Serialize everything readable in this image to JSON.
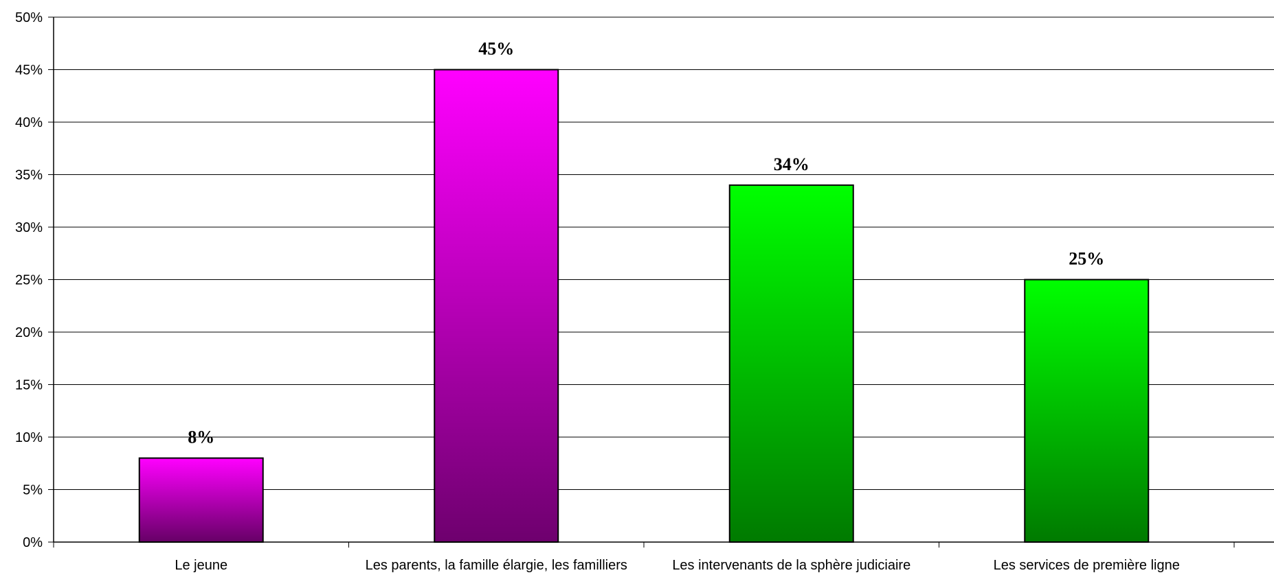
{
  "chart_data": {
    "type": "bar",
    "categories": [
      "Le jeune",
      "Les parents, la famille élargie, les familliers",
      "Les intervenants de la sphère judiciaire",
      "Les services de première ligne"
    ],
    "values": [
      8,
      45,
      34,
      25
    ],
    "data_labels": [
      "8%",
      "45%",
      "34%",
      "25%"
    ],
    "title": "",
    "xlabel": "",
    "ylabel": "",
    "ylim": [
      0,
      50
    ],
    "y_ticks": [
      0,
      5,
      10,
      15,
      20,
      25,
      30,
      35,
      40,
      45,
      50
    ],
    "y_tick_labels": [
      "0%",
      "5%",
      "10%",
      "15%",
      "20%",
      "25%",
      "30%",
      "35%",
      "40%",
      "45%",
      "50%"
    ],
    "grid": true,
    "legend": "none",
    "bar_colors": [
      {
        "top": "#ff00ff",
        "bottom": "#660066"
      },
      {
        "top": "#ff00ff",
        "bottom": "#6e006e"
      },
      {
        "top": "#00ff00",
        "bottom": "#007a00"
      },
      {
        "top": "#00ff00",
        "bottom": "#007a00"
      }
    ]
  }
}
